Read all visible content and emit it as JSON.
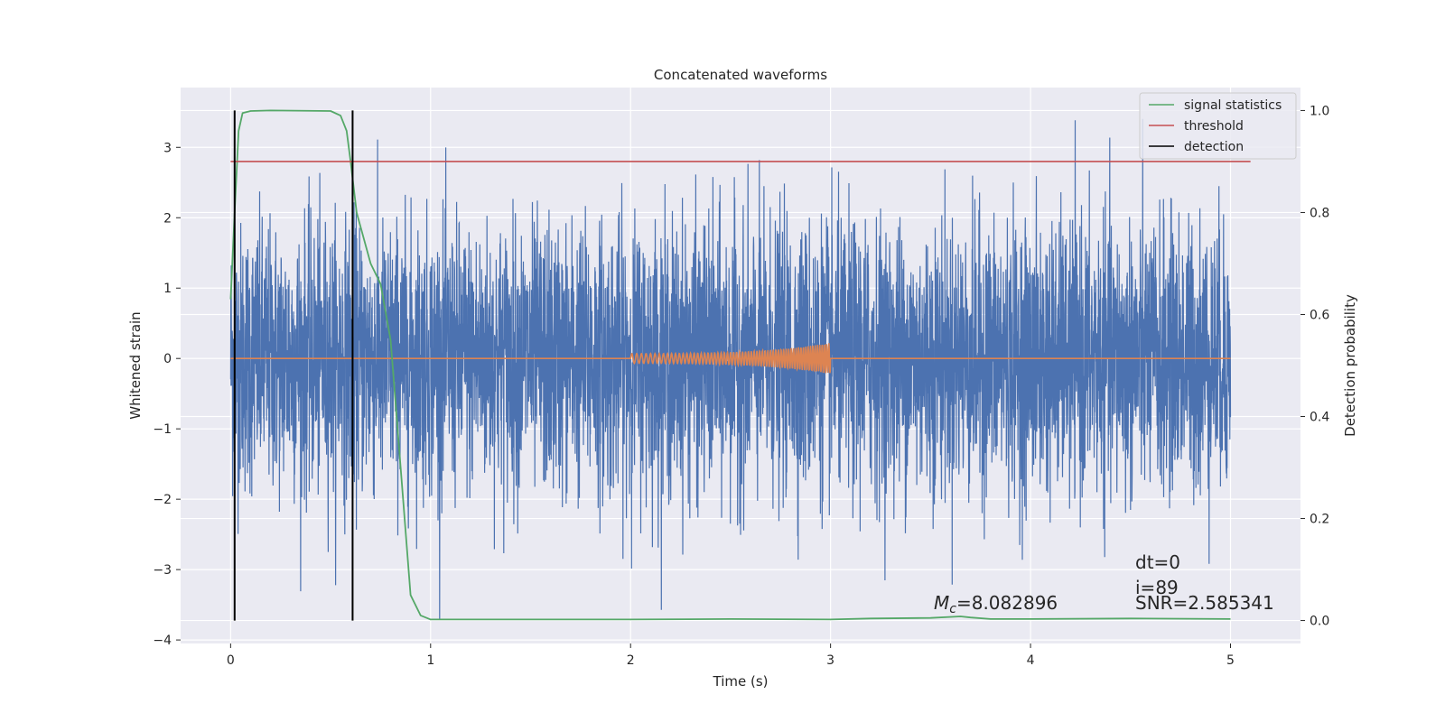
{
  "chart_data": {
    "type": "line",
    "title": "Concatenated waveforms",
    "xlabel": "Time (s)",
    "ylabel": "Whitened strain",
    "ylabel_right": "Detection probability",
    "xlim": [
      -0.25,
      5.35
    ],
    "ylim": [
      -4.05,
      3.85
    ],
    "ylim_right": [
      -0.045,
      1.045
    ],
    "x_ticks": [
      0,
      1,
      2,
      3,
      4,
      5
    ],
    "y_ticks": [
      -4,
      -3,
      -2,
      -1,
      0,
      1,
      2,
      3
    ],
    "y_ticks_right": [
      0.0,
      0.2,
      0.4,
      0.6,
      0.8,
      1.0
    ],
    "x_tick_labels": [
      "0",
      "1",
      "2",
      "3",
      "4",
      "5"
    ],
    "y_tick_labels": [
      "−4",
      "−3",
      "−2",
      "−1",
      "0",
      "1",
      "2",
      "3"
    ],
    "y_tick_labels_right": [
      "0.0",
      "0.2",
      "0.4",
      "0.6",
      "0.8",
      "1.0"
    ],
    "grid": true,
    "legend_position": "top-right",
    "colors": {
      "background": "#eaeaf2",
      "grid": "#ffffff",
      "strain": "#4c72b0",
      "template": "#dd8452",
      "signal_statistics": "#55a868",
      "threshold": "#c44e52",
      "detection": "#000000"
    },
    "legend": [
      {
        "name": "signal statistics",
        "color": "#55a868"
      },
      {
        "name": "threshold",
        "color": "#c44e52"
      },
      {
        "name": "detection",
        "color": "#000000"
      }
    ],
    "series": [
      {
        "name": "whitened strain (noise)",
        "axis": "left",
        "x_range": [
          0,
          5
        ],
        "approx_amplitude_range": [
          -3.7,
          3.5
        ]
      },
      {
        "name": "template waveform",
        "axis": "left",
        "x": [
          0,
          2,
          2.5,
          3,
          5
        ],
        "y_envelope": [
          0,
          0.08,
          0.1,
          0.22,
          0
        ]
      },
      {
        "name": "signal statistics",
        "axis": "right",
        "x": [
          0,
          0.02,
          0.04,
          0.06,
          0.1,
          0.2,
          0.5,
          0.55,
          0.58,
          0.6,
          0.63,
          0.7,
          0.75,
          0.8,
          0.85,
          0.9,
          0.95,
          1.0,
          1.5,
          2.0,
          2.5,
          3.0,
          3.2,
          3.5,
          3.65,
          3.7,
          3.8,
          4.0,
          4.5,
          5.0
        ],
        "y": [
          0.63,
          0.8,
          0.96,
          0.995,
          0.999,
          1.0,
          0.999,
          0.99,
          0.96,
          0.9,
          0.8,
          0.7,
          0.66,
          0.55,
          0.3,
          0.05,
          0.01,
          0.002,
          0.002,
          0.002,
          0.003,
          0.002,
          0.004,
          0.005,
          0.008,
          0.006,
          0.003,
          0.003,
          0.004,
          0.003
        ]
      },
      {
        "name": "threshold",
        "axis": "right",
        "x": [
          0,
          5.1
        ],
        "y": [
          0.9,
          0.9
        ]
      },
      {
        "name": "detection",
        "axis": "right",
        "x": [
          0.02,
          0.61
        ],
        "y_range": [
          0,
          1
        ]
      }
    ],
    "annotations": {
      "mc_label": "=8.082896",
      "mc_symbol": "M",
      "mc_subscript": "c",
      "dt": "dt=0",
      "i": "i=89",
      "snr": "SNR=2.585341"
    }
  }
}
